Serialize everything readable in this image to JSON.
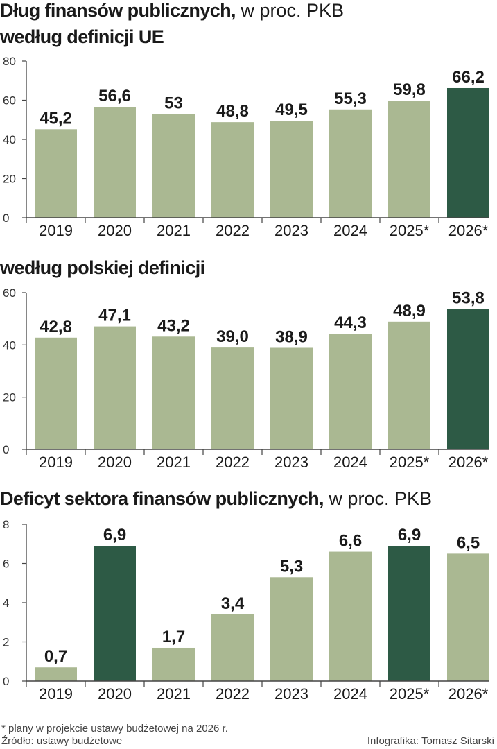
{
  "header": {
    "title_bold": "Dług finansów publicznych,",
    "title_light": " w proc. PKB",
    "subtitle_eu": "według definicji UE",
    "subtitle_pl": "według polskiej definicji",
    "deficit_bold": "Deficyt sektora finansów publicznych,",
    "deficit_light": " w proc. PKB"
  },
  "colors": {
    "light": "#aab892",
    "dark": "#2d5a45",
    "axis": "#444444"
  },
  "chart_data": [
    {
      "type": "bar",
      "title": "Dług finansów publicznych, w proc. PKB – według definicji UE",
      "categories": [
        "2019",
        "2020",
        "2021",
        "2022",
        "2023",
        "2024",
        "2025*",
        "2026*"
      ],
      "values": [
        45.2,
        56.6,
        53,
        48.8,
        49.5,
        55.3,
        59.8,
        66.2
      ],
      "labels": [
        "45,2",
        "56,6",
        "53",
        "48,8",
        "49,5",
        "55,3",
        "59,8",
        "66,2"
      ],
      "highlight": [
        false,
        false,
        false,
        false,
        false,
        false,
        false,
        true
      ],
      "ylim": [
        0,
        80
      ],
      "yticks": [
        0,
        20,
        40,
        60,
        80
      ]
    },
    {
      "type": "bar",
      "title": "według polskiej definicji",
      "categories": [
        "2019",
        "2020",
        "2021",
        "2022",
        "2023",
        "2024",
        "2025*",
        "2026*"
      ],
      "values": [
        42.8,
        47.1,
        43.2,
        39.0,
        38.9,
        44.3,
        48.9,
        53.8
      ],
      "labels": [
        "42,8",
        "47,1",
        "43,2",
        "39,0",
        "38,9",
        "44,3",
        "48,9",
        "53,8"
      ],
      "highlight": [
        false,
        false,
        false,
        false,
        false,
        false,
        false,
        true
      ],
      "ylim": [
        0,
        60
      ],
      "yticks": [
        0,
        20,
        40,
        60
      ]
    },
    {
      "type": "bar",
      "title": "Deficyt sektora finansów publicznych, w proc. PKB",
      "categories": [
        "2019",
        "2020",
        "2021",
        "2022",
        "2023",
        "2024",
        "2025*",
        "2026*"
      ],
      "values": [
        0.7,
        6.9,
        1.7,
        3.4,
        5.3,
        6.6,
        6.9,
        6.5
      ],
      "labels": [
        "0,7",
        "6,9",
        "1,7",
        "3,4",
        "5,3",
        "6,6",
        "6,9",
        "6,5"
      ],
      "highlight": [
        false,
        true,
        false,
        false,
        false,
        false,
        true,
        false
      ],
      "ylim": [
        0,
        8
      ],
      "yticks": [
        0,
        2,
        4,
        6,
        8
      ]
    }
  ],
  "footer": {
    "note": "* plany w projekcie ustawy budżetowej na 2026 r.",
    "source": "Źródło: ustawy budżetowe",
    "credit": "Infografika: Tomasz Sitarski"
  }
}
